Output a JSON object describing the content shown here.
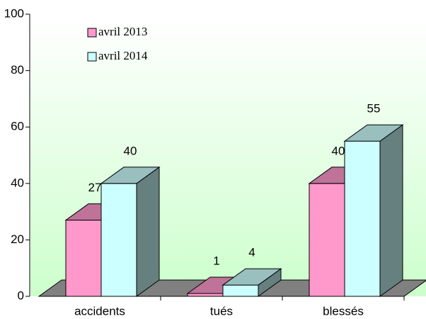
{
  "chart_data": {
    "type": "bar3d",
    "categories": [
      "accidents",
      "tués",
      "blessés"
    ],
    "series": [
      {
        "name": "avril 2013",
        "color": "#ff99cc",
        "values": [
          27,
          1,
          40
        ]
      },
      {
        "name": "avril 2014",
        "color": "#ccffff",
        "values": [
          40,
          4,
          55
        ]
      }
    ],
    "ylim": [
      0,
      100
    ],
    "yticks": [
      0,
      20,
      40,
      60,
      80,
      100
    ],
    "legend": "upper left"
  }
}
